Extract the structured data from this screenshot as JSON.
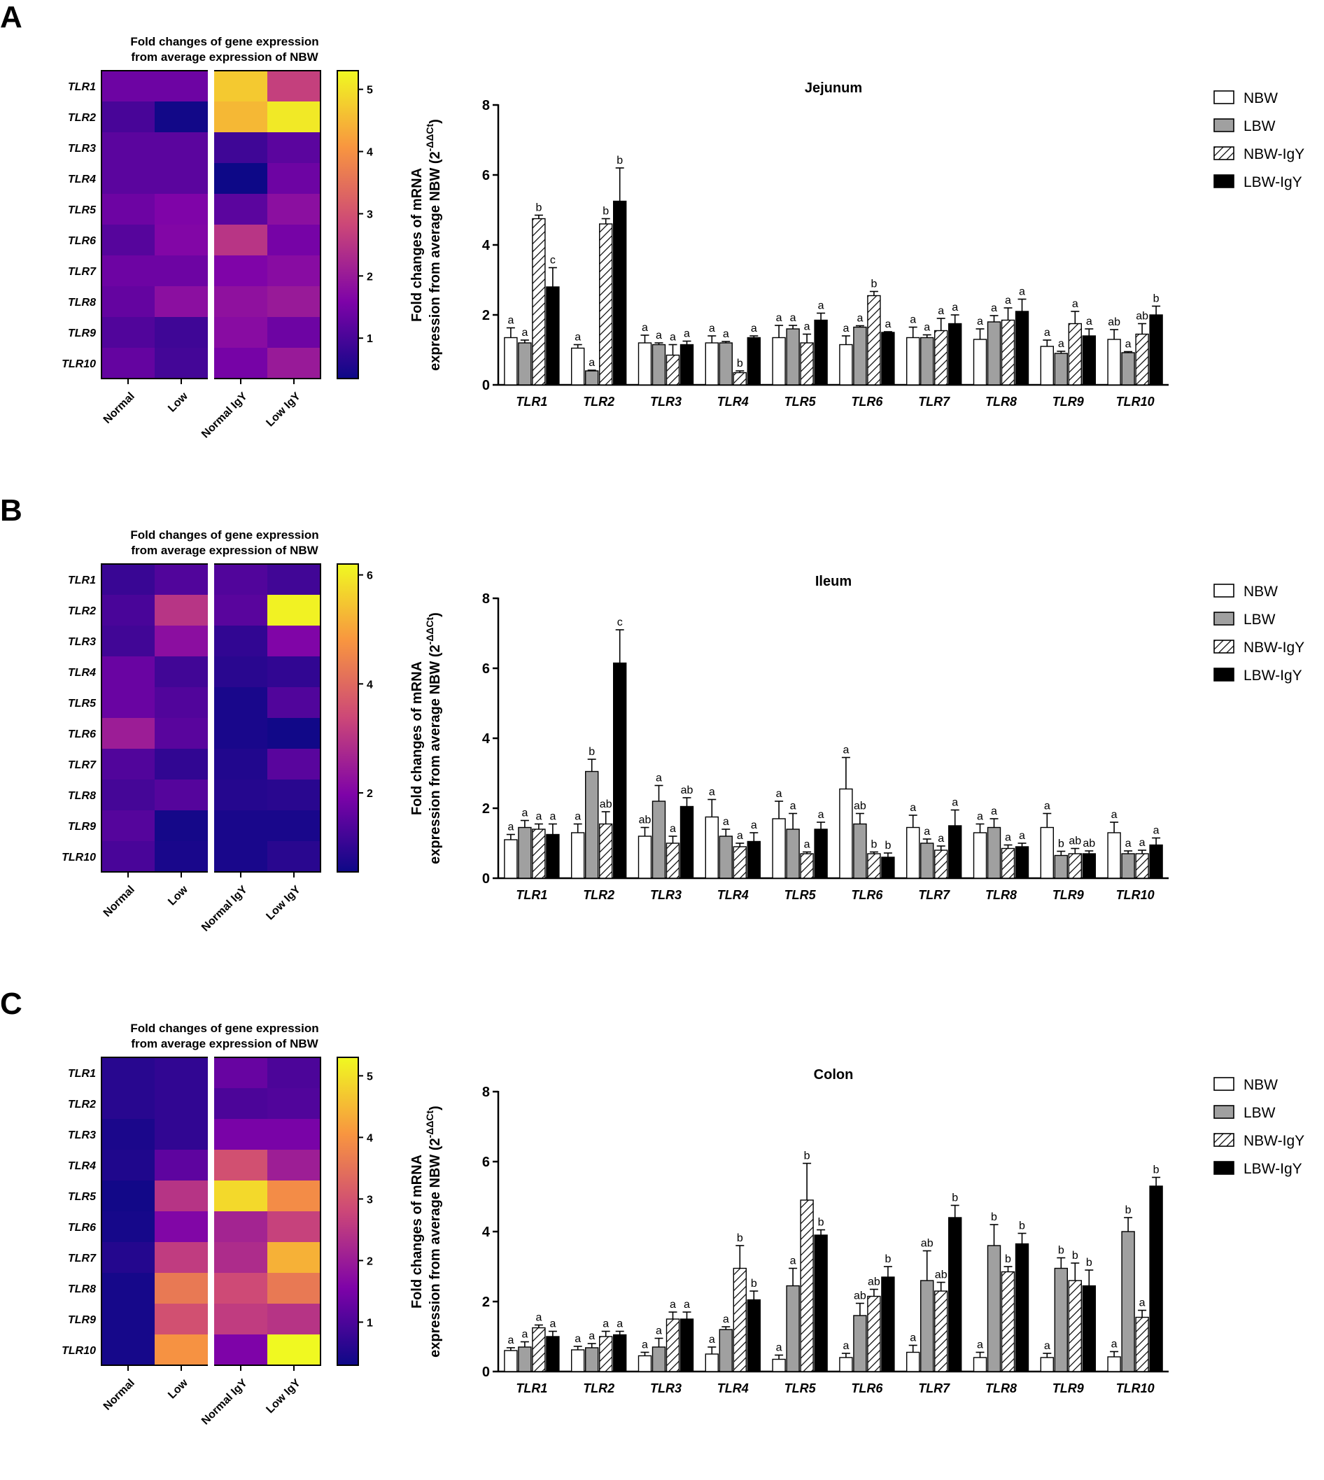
{
  "figure": {
    "panel_labels": [
      "A",
      "B",
      "C"
    ]
  },
  "chart_data": [
    {
      "panel": "A",
      "heatmap": {
        "type": "heatmap",
        "title_line1": "Fold changes of gene expression",
        "title_line2": "from average expression of NBW",
        "rows": [
          "TLR1",
          "TLR2",
          "TLR3",
          "TLR4",
          "TLR5",
          "TLR6",
          "TLR7",
          "TLR8",
          "TLR9",
          "TLR10"
        ],
        "columns": [
          "Normal",
          "Low",
          "Normal IgY",
          "Low IgY"
        ],
        "values": [
          [
            1.4,
            1.4,
            4.7,
            2.7
          ],
          [
            1.0,
            0.4,
            4.5,
            5.1
          ],
          [
            1.2,
            1.2,
            0.9,
            1.2
          ],
          [
            1.2,
            1.2,
            0.35,
            1.4
          ],
          [
            1.4,
            1.6,
            1.2,
            1.8
          ],
          [
            1.15,
            1.65,
            2.5,
            1.5
          ],
          [
            1.4,
            1.4,
            1.6,
            1.75
          ],
          [
            1.3,
            1.8,
            1.85,
            2.0
          ],
          [
            1.1,
            0.9,
            1.75,
            1.4
          ],
          [
            1.3,
            0.95,
            1.5,
            2.0
          ]
        ],
        "scale_min": 0.35,
        "scale_max": 5.3,
        "colorbar_ticks": [
          1,
          2,
          3,
          4,
          5
        ]
      },
      "bar": {
        "type": "bar",
        "title": "Jejunum",
        "ylabel_line1": "Fold changes of mRNA",
        "ylabel_line2": "expression from average NBW (2",
        "ylabel_sup": "-ΔΔCt",
        "ylabel_close": ")",
        "ylim": [
          0,
          8
        ],
        "yticks": [
          0,
          2,
          4,
          6,
          8
        ],
        "categories": [
          "TLR1",
          "TLR2",
          "TLR3",
          "TLR4",
          "TLR5",
          "TLR6",
          "TLR7",
          "TLR8",
          "TLR9",
          "TLR10"
        ],
        "series": [
          {
            "name": "NBW",
            "pattern": "white",
            "values": [
              1.35,
              1.05,
              1.2,
              1.2,
              1.35,
              1.15,
              1.35,
              1.3,
              1.1,
              1.3
            ],
            "errors": [
              0.28,
              0.1,
              0.22,
              0.2,
              0.35,
              0.25,
              0.3,
              0.3,
              0.18,
              0.28
            ],
            "labels": [
              "a",
              "a",
              "a",
              "a",
              "a",
              "a",
              "a",
              "a",
              "a",
              "ab"
            ]
          },
          {
            "name": "LBW",
            "pattern": "gray",
            "values": [
              1.2,
              0.4,
              1.15,
              1.2,
              1.6,
              1.65,
              1.35,
              1.8,
              0.9,
              0.92
            ],
            "errors": [
              0.08,
              0.02,
              0.05,
              0.04,
              0.1,
              0.04,
              0.08,
              0.18,
              0.06,
              0.03
            ],
            "labels": [
              "a",
              "a",
              "a",
              "a",
              "a",
              "a",
              "a",
              "a",
              "a",
              "a"
            ]
          },
          {
            "name": "NBW-IgY",
            "pattern": "hatch",
            "values": [
              4.75,
              4.6,
              0.85,
              0.35,
              1.2,
              2.55,
              1.55,
              1.85,
              1.75,
              1.45
            ],
            "errors": [
              0.1,
              0.15,
              0.3,
              0.05,
              0.25,
              0.12,
              0.35,
              0.35,
              0.35,
              0.3
            ],
            "labels": [
              "b",
              "b",
              "a",
              "b",
              "a",
              "b",
              "a",
              "a",
              "a",
              "ab"
            ]
          },
          {
            "name": "LBW-IgY",
            "pattern": "black",
            "values": [
              2.8,
              5.25,
              1.15,
              1.35,
              1.85,
              1.5,
              1.75,
              2.1,
              1.4,
              2.0
            ],
            "errors": [
              0.55,
              0.95,
              0.1,
              0.05,
              0.2,
              0.02,
              0.25,
              0.35,
              0.2,
              0.25
            ],
            "labels": [
              "c",
              "b",
              "a",
              "a",
              "a",
              "a",
              "a",
              "a",
              "a",
              "b"
            ]
          }
        ],
        "legend_position": "top-right"
      }
    },
    {
      "panel": "B",
      "heatmap": {
        "type": "heatmap",
        "title_line1": "Fold changes of gene expression",
        "title_line2": "from average expression of NBW",
        "rows": [
          "TLR1",
          "TLR2",
          "TLR3",
          "TLR4",
          "TLR5",
          "TLR6",
          "TLR7",
          "TLR8",
          "TLR9",
          "TLR10"
        ],
        "columns": [
          "Normal",
          "Low",
          "Normal IgY",
          "Low IgY"
        ],
        "values": [
          [
            1.1,
            1.4,
            1.4,
            1.2
          ],
          [
            1.3,
            3.0,
            1.5,
            6.1
          ],
          [
            1.2,
            2.2,
            1.0,
            2.0
          ],
          [
            1.7,
            1.2,
            0.9,
            1.0
          ],
          [
            1.7,
            1.4,
            0.7,
            1.4
          ],
          [
            2.5,
            1.5,
            0.7,
            0.6
          ],
          [
            1.4,
            1.0,
            0.8,
            1.5
          ],
          [
            1.25,
            1.45,
            0.85,
            0.9
          ],
          [
            1.45,
            0.65,
            0.7,
            0.7
          ],
          [
            1.3,
            0.7,
            0.7,
            0.9
          ]
        ],
        "scale_min": 0.55,
        "scale_max": 6.2,
        "colorbar_ticks": [
          2,
          4,
          6
        ]
      },
      "bar": {
        "type": "bar",
        "title": "Ileum",
        "ylabel_line1": "Fold changes of mRNA",
        "ylabel_line2": "expression from average NBW (2",
        "ylabel_sup": "-ΔΔCt",
        "ylabel_close": ")",
        "ylim": [
          0,
          8
        ],
        "yticks": [
          0,
          2,
          4,
          6,
          8
        ],
        "categories": [
          "TLR1",
          "TLR2",
          "TLR3",
          "TLR4",
          "TLR5",
          "TLR6",
          "TLR7",
          "TLR8",
          "TLR9",
          "TLR10"
        ],
        "series": [
          {
            "name": "NBW",
            "pattern": "white",
            "values": [
              1.1,
              1.3,
              1.2,
              1.75,
              1.7,
              2.55,
              1.45,
              1.3,
              1.45,
              1.3
            ],
            "errors": [
              0.15,
              0.25,
              0.25,
              0.5,
              0.5,
              0.9,
              0.35,
              0.25,
              0.4,
              0.3
            ],
            "labels": [
              "a",
              "a",
              "ab",
              "a",
              "a",
              "a",
              "a",
              "a",
              "a",
              "a"
            ]
          },
          {
            "name": "LBW",
            "pattern": "gray",
            "values": [
              1.45,
              3.05,
              2.2,
              1.2,
              1.4,
              1.55,
              1.0,
              1.45,
              0.65,
              0.7
            ],
            "errors": [
              0.2,
              0.35,
              0.45,
              0.2,
              0.45,
              0.3,
              0.12,
              0.25,
              0.12,
              0.08
            ],
            "labels": [
              "a",
              "b",
              "a",
              "a",
              "a",
              "ab",
              "a",
              "a",
              "b",
              "a"
            ]
          },
          {
            "name": "NBW-IgY",
            "pattern": "hatch",
            "values": [
              1.4,
              1.55,
              1.0,
              0.9,
              0.7,
              0.7,
              0.8,
              0.85,
              0.7,
              0.7
            ],
            "errors": [
              0.15,
              0.35,
              0.2,
              0.1,
              0.05,
              0.05,
              0.12,
              0.1,
              0.15,
              0.1
            ],
            "labels": [
              "a",
              "ab",
              "a",
              "a",
              "a",
              "b",
              "a",
              "a",
              "ab",
              "a"
            ]
          },
          {
            "name": "LBW-IgY",
            "pattern": "black",
            "values": [
              1.25,
              6.15,
              2.05,
              1.05,
              1.4,
              0.6,
              1.5,
              0.9,
              0.7,
              0.95
            ],
            "errors": [
              0.3,
              0.95,
              0.25,
              0.25,
              0.2,
              0.12,
              0.45,
              0.1,
              0.08,
              0.2
            ],
            "labels": [
              "a",
              "c",
              "ab",
              "a",
              "a",
              "b",
              "a",
              "a",
              "ab",
              "a"
            ]
          }
        ],
        "legend_position": "top-right"
      }
    },
    {
      "panel": "C",
      "heatmap": {
        "type": "heatmap",
        "title_line1": "Fold changes of gene expression",
        "title_line2": "from average expression of NBW",
        "rows": [
          "TLR1",
          "TLR2",
          "TLR3",
          "TLR4",
          "TLR5",
          "TLR6",
          "TLR7",
          "TLR8",
          "TLR9",
          "TLR10"
        ],
        "columns": [
          "Normal",
          "Low",
          "Normal IgY",
          "Low IgY"
        ],
        "values": [
          [
            0.6,
            0.7,
            1.3,
            1.0
          ],
          [
            0.6,
            0.7,
            1.0,
            1.05
          ],
          [
            0.45,
            0.7,
            1.5,
            1.5
          ],
          [
            0.5,
            1.2,
            2.95,
            2.05
          ],
          [
            0.35,
            2.45,
            4.9,
            3.9
          ],
          [
            0.4,
            1.6,
            2.15,
            2.7
          ],
          [
            0.55,
            2.6,
            2.3,
            4.4
          ],
          [
            0.4,
            3.6,
            2.85,
            3.6
          ],
          [
            0.4,
            2.95,
            2.6,
            2.45
          ],
          [
            0.4,
            4.0,
            1.55,
            5.3
          ]
        ],
        "scale_min": 0.3,
        "scale_max": 5.3,
        "colorbar_ticks": [
          1,
          2,
          3,
          4,
          5
        ]
      },
      "bar": {
        "type": "bar",
        "title": "Colon",
        "ylabel_line1": "Fold changes of mRNA",
        "ylabel_line2": "expression from average NBW (2",
        "ylabel_sup": "-ΔΔCt",
        "ylabel_close": ")",
        "ylim": [
          0,
          8
        ],
        "yticks": [
          0,
          2,
          4,
          6,
          8
        ],
        "categories": [
          "TLR1",
          "TLR2",
          "TLR3",
          "TLR4",
          "TLR5",
          "TLR6",
          "TLR7",
          "TLR8",
          "TLR9",
          "TLR10"
        ],
        "series": [
          {
            "name": "NBW",
            "pattern": "white",
            "values": [
              0.6,
              0.62,
              0.45,
              0.5,
              0.35,
              0.4,
              0.55,
              0.4,
              0.4,
              0.42
            ],
            "errors": [
              0.08,
              0.1,
              0.1,
              0.2,
              0.12,
              0.12,
              0.2,
              0.15,
              0.12,
              0.15
            ],
            "labels": [
              "a",
              "a",
              "a",
              "a",
              "a",
              "a",
              "a",
              "a",
              "a",
              "a"
            ]
          },
          {
            "name": "LBW",
            "pattern": "gray",
            "values": [
              0.7,
              0.68,
              0.7,
              1.2,
              2.45,
              1.6,
              2.6,
              3.6,
              2.95,
              4.0
            ],
            "errors": [
              0.15,
              0.12,
              0.25,
              0.08,
              0.5,
              0.35,
              0.85,
              0.6,
              0.3,
              0.4
            ],
            "labels": [
              "a",
              "a",
              "a",
              "a",
              "a",
              "ab",
              "ab",
              "b",
              "b",
              "b"
            ]
          },
          {
            "name": "NBW-IgY",
            "pattern": "hatch",
            "values": [
              1.25,
              1.0,
              1.5,
              2.95,
              4.9,
              2.15,
              2.3,
              2.85,
              2.6,
              1.55
            ],
            "errors": [
              0.08,
              0.15,
              0.2,
              0.65,
              1.05,
              0.2,
              0.25,
              0.15,
              0.5,
              0.2
            ],
            "labels": [
              "a",
              "a",
              "a",
              "b",
              "b",
              "ab",
              "ab",
              "b",
              "b",
              "a"
            ]
          },
          {
            "name": "LBW-IgY",
            "pattern": "black",
            "values": [
              1.0,
              1.05,
              1.5,
              2.05,
              3.9,
              2.7,
              4.4,
              3.65,
              2.45,
              5.3
            ],
            "errors": [
              0.15,
              0.1,
              0.2,
              0.25,
              0.15,
              0.3,
              0.35,
              0.3,
              0.45,
              0.25
            ],
            "labels": [
              "a",
              "a",
              "a",
              "b",
              "b",
              "b",
              "b",
              "b",
              "b",
              "b"
            ]
          }
        ],
        "legend_position": "top-right"
      }
    }
  ]
}
